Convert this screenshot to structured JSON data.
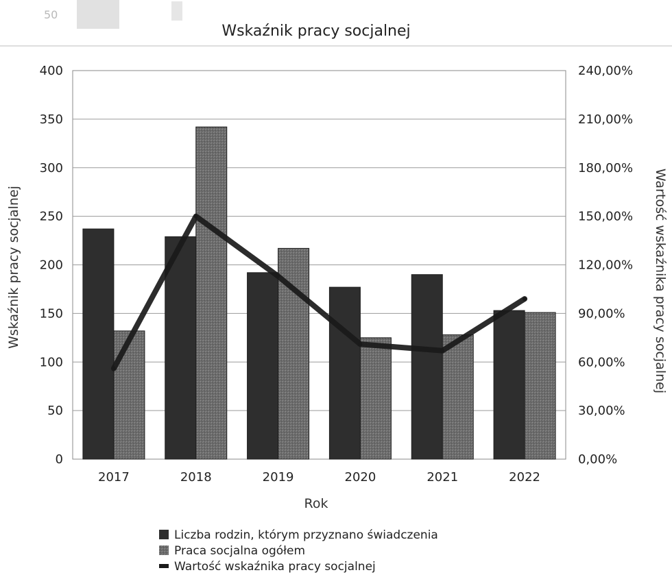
{
  "chart_data": {
    "type": "bar",
    "title": "Wskaźnik pracy socjalnej",
    "xlabel": "Rok",
    "ylabel": "Wskaźnik pracy socjalnej",
    "y2label": "Wartość wskaźnika pracy socjalnej",
    "categories": [
      "2017",
      "2018",
      "2019",
      "2020",
      "2021",
      "2022"
    ],
    "ylim": [
      0,
      400
    ],
    "y2lim": [
      0,
      240
    ],
    "yticks": [
      "0",
      "50",
      "100",
      "150",
      "200",
      "250",
      "300",
      "350",
      "400"
    ],
    "y2ticks": [
      "0,00%",
      "30,00%",
      "60,00%",
      "90,00%",
      "120,00%",
      "150,00%",
      "180,00%",
      "210,00%",
      "240,00%"
    ],
    "series": [
      {
        "name": "Liczba rodzin, którym przyznano świadczenia",
        "kind": "bar",
        "axis": "left",
        "color": "#2e2e2e",
        "values": [
          237,
          229,
          192,
          177,
          190,
          153
        ]
      },
      {
        "name": "Praca socjalna ogółem",
        "kind": "bar",
        "axis": "left",
        "color": "#6b6b6b",
        "values": [
          132,
          342,
          217,
          125,
          128,
          151
        ]
      },
      {
        "name": "Wartość wskaźnika pracy socjalnej",
        "kind": "line",
        "axis": "right",
        "color": "#1a1a1a",
        "values": [
          56,
          150,
          113,
          71,
          67,
          99
        ]
      }
    ],
    "grid": true,
    "legend": "bottom"
  },
  "scan_artifact": "50"
}
